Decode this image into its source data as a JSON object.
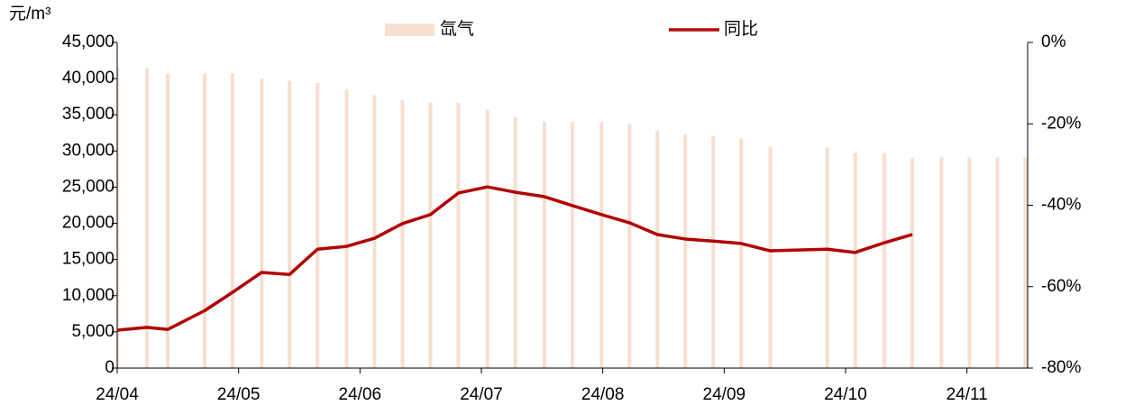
{
  "chart_data": {
    "type": "bar",
    "y_axis_label": "元/m³",
    "x": [
      0,
      0.245,
      0.416,
      0.72,
      0.95,
      1.19,
      1.42,
      1.65,
      1.89,
      2.12,
      2.35,
      2.58,
      2.81,
      3.05,
      3.28,
      3.52,
      3.75,
      3.99,
      4.22,
      4.45,
      4.68,
      4.91,
      5.14,
      5.38,
      5.85,
      6.08,
      6.32,
      6.55,
      6.79,
      7.02,
      7.25,
      7.48
    ],
    "xlim": [
      0,
      7.5
    ],
    "xticks": [
      {
        "value": 0,
        "label": "24/04"
      },
      {
        "value": 1,
        "label": "24/05"
      },
      {
        "value": 2,
        "label": "24/06"
      },
      {
        "value": 3,
        "label": "24/07"
      },
      {
        "value": 4,
        "label": "24/08"
      },
      {
        "value": 5,
        "label": "24/09"
      },
      {
        "value": 6,
        "label": "24/10"
      },
      {
        "value": 7,
        "label": "24/11"
      }
    ],
    "ylim": [
      0,
      45000
    ],
    "yticks": [
      0,
      {
        "value": 5000,
        "label": "5,000"
      },
      {
        "value": 10000,
        "label": "10,000"
      },
      {
        "value": 15000,
        "label": "15,000"
      },
      {
        "value": 20000,
        "label": "20,000"
      },
      {
        "value": 25000,
        "label": "25,000"
      },
      {
        "value": 30000,
        "label": "30,000"
      },
      {
        "value": 35000,
        "label": "35,000"
      },
      {
        "value": 40000,
        "label": "40,000"
      },
      {
        "value": 45000,
        "label": "45,000"
      }
    ],
    "y2lim": [
      -80,
      0
    ],
    "y2ticks": [
      {
        "value": 0,
        "label": "0%"
      },
      {
        "value": -20,
        "label": "-20%"
      },
      {
        "value": -40,
        "label": "-40%"
      },
      {
        "value": -60,
        "label": "-60%"
      },
      {
        "value": -80,
        "label": "-80%"
      }
    ],
    "series": [
      {
        "name": "氙气",
        "type": "bar",
        "color": "#f7dfd0",
        "values": [
          41500,
          41500,
          40700,
          40700,
          40700,
          40000,
          39700,
          39400,
          38500,
          37700,
          37000,
          36700,
          36700,
          35700,
          34700,
          34000,
          34000,
          34000,
          33700,
          32800,
          32300,
          32100,
          31700,
          30600,
          30500,
          29700,
          29700,
          29100,
          29100,
          29100,
          29100,
          29100
        ]
      },
      {
        "name": "同比",
        "type": "line",
        "axis": "y2",
        "color": "#b20000",
        "values": [
          -70.7,
          -70.0,
          -70.5,
          -65.9,
          -61.4,
          -56.5,
          -57.0,
          -50.8,
          -50.1,
          -48.1,
          -44.5,
          -42.3,
          -37.0,
          -35.5,
          -36.8,
          -37.9,
          -40.1,
          -42.3,
          -44.3,
          -47.2,
          -48.3,
          -48.8,
          -49.4,
          -51.2,
          -50.8,
          -51.6,
          -49.2,
          -47.2,
          null,
          null,
          null,
          null
        ]
      }
    ]
  }
}
